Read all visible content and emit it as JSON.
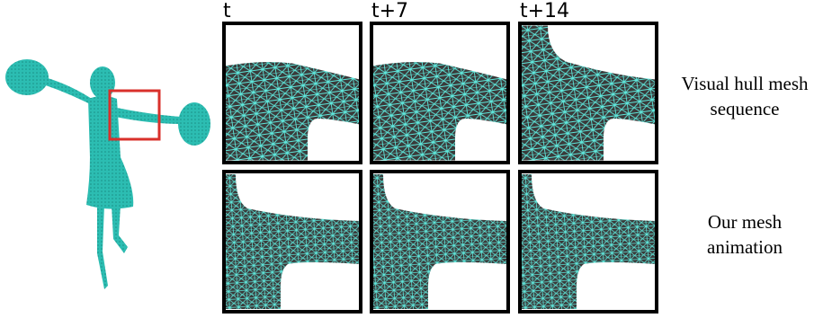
{
  "columns": [
    "t",
    "t+7",
    "t+14"
  ],
  "rows": [
    {
      "label_lines": [
        "Visual hull mesh",
        "sequence"
      ]
    },
    {
      "label_lines": [
        "Our mesh",
        "animation"
      ]
    }
  ]
}
